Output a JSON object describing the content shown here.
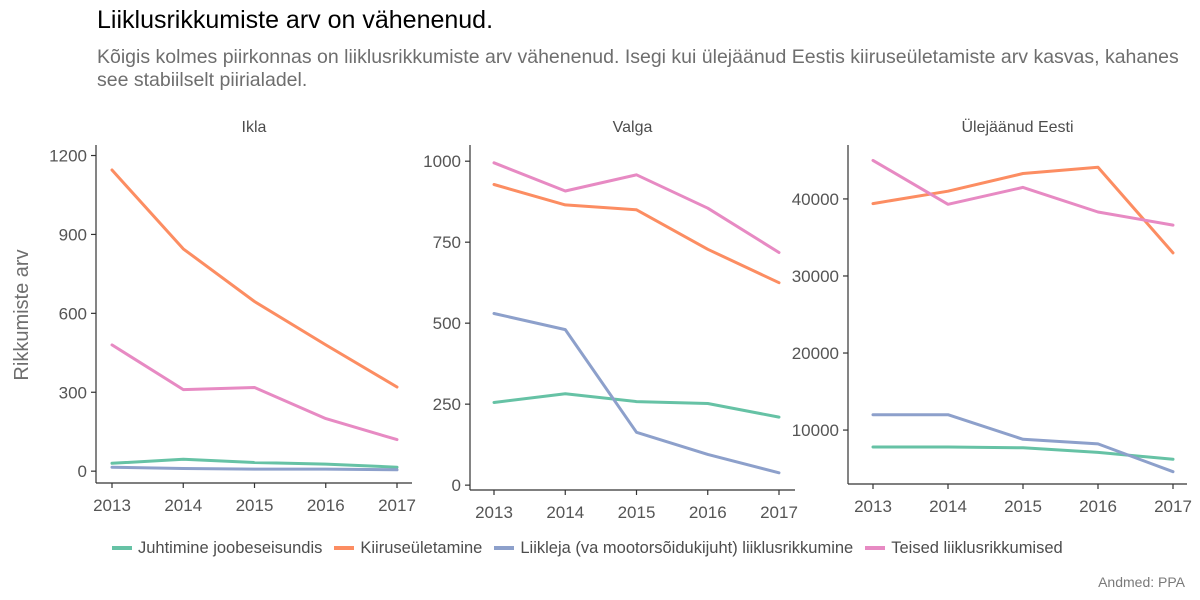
{
  "title": "Liiklusrikkumiste arv on vähenenud.",
  "subtitle": "Kõigis kolmes piirkonnas on liiklusrikkumiste arv vähenenud. Isegi kui ülejäänud Eestis kiiruseületamiste arv kasvas, kahanes see stabiilselt piirialadel.",
  "source": "Andmed: PPA",
  "chart_data": {
    "type": "line",
    "title": "Liiklusrikkumiste arv on vähenenud.",
    "ylabel": "Rikkumiste arv",
    "xlabel": "",
    "x": [
      "2013",
      "2014",
      "2015",
      "2016",
      "2017"
    ],
    "legend_position": "bottom",
    "legend": [
      {
        "name": "Juhtimine joobeseisundis",
        "color": "#66c2a5"
      },
      {
        "name": "Kiiruseületamine",
        "color": "#fc8d62"
      },
      {
        "name": "Liikleja (va mootorsõidukijuht) liiklusrikkumine",
        "color": "#8da0cb"
      },
      {
        "name": "Teised liiklusrikkumised",
        "color": "#e78ac3"
      }
    ],
    "panels": [
      {
        "name": "Ikla",
        "ylim": [
          -45,
          1240
        ],
        "yticks": [
          0,
          300,
          600,
          900,
          1200
        ],
        "series": [
          {
            "name": "Juhtimine joobeseisundis",
            "values": [
              30,
              45,
              33,
              27,
              15
            ]
          },
          {
            "name": "Kiiruseületamine",
            "values": [
              1145,
              845,
              645,
              480,
              320
            ]
          },
          {
            "name": "Liikleja (va mootorsõidukijuht) liiklusrikkumine",
            "values": [
              15,
              10,
              8,
              8,
              5
            ]
          },
          {
            "name": "Teised liiklusrikkumised",
            "values": [
              480,
              310,
              318,
              200,
              120
            ]
          }
        ]
      },
      {
        "name": "Valga",
        "ylim": [
          -15,
          1050
        ],
        "yticks": [
          0,
          250,
          500,
          750,
          1000
        ],
        "series": [
          {
            "name": "Juhtimine joobeseisundis",
            "values": [
              255,
              282,
              258,
              252,
              210
            ]
          },
          {
            "name": "Kiiruseületamine",
            "values": [
              928,
              865,
              850,
              728,
              625
            ]
          },
          {
            "name": "Liikleja (va mootorsõidukijuht) liiklusrikkumine",
            "values": [
              530,
              480,
              163,
              95,
              38
            ]
          },
          {
            "name": "Teised liiklusrikkumised",
            "values": [
              995,
              908,
              958,
              855,
              718
            ]
          }
        ]
      },
      {
        "name": "Ülejäänud Eesti",
        "ylim": [
          3000,
          47000
        ],
        "yticks": [
          10000,
          20000,
          30000,
          40000
        ],
        "series": [
          {
            "name": "Juhtimine joobeseisundis",
            "values": [
              7800,
              7800,
              7700,
              7100,
              6200
            ]
          },
          {
            "name": "Kiiruseületamine",
            "values": [
              39400,
              41000,
              43300,
              44100,
              33000
            ]
          },
          {
            "name": "Liikleja (va mootorsõidukijuht) liiklusrikkumine",
            "values": [
              12000,
              12000,
              8800,
              8200,
              4600
            ]
          },
          {
            "name": "Teised liiklusrikkumised",
            "values": [
              45000,
              39300,
              41500,
              38300,
              36600
            ]
          }
        ]
      }
    ]
  }
}
